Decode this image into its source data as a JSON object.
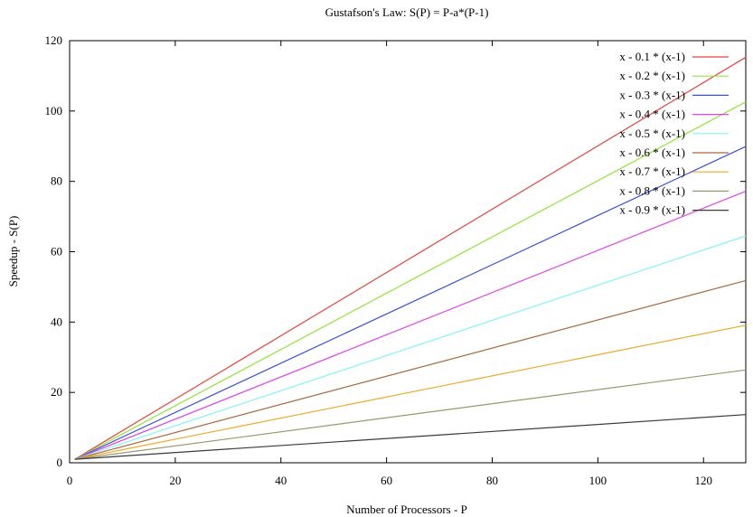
{
  "chart_data": {
    "type": "line",
    "title": "Gustafson's Law: S(P) = P-a*(P-1)",
    "xlabel": "Number of Processors - P",
    "ylabel": "Speedup - S(P)",
    "xlim": [
      0,
      128
    ],
    "ylim": [
      0,
      120
    ],
    "xticks": [
      "0",
      "20",
      "40",
      "60",
      "80",
      "100",
      "120"
    ],
    "yticks": [
      "0",
      "20",
      "40",
      "60",
      "80",
      "100",
      "120"
    ],
    "x": [
      1,
      128
    ],
    "grid": false,
    "legend_position": "top-right",
    "series": [
      {
        "name": "x - 0.1 * (x-1)",
        "color": "#e8423a",
        "a": 0.1,
        "values": [
          1,
          115.3
        ]
      },
      {
        "name": "x - 0.2 * (x-1)",
        "color": "#8ee63a",
        "a": 0.2,
        "values": [
          1,
          102.6
        ]
      },
      {
        "name": "x - 0.3 * (x-1)",
        "color": "#3a52d6",
        "a": 0.3,
        "values": [
          1,
          89.9
        ]
      },
      {
        "name": "x - 0.4 * (x-1)",
        "color": "#e044e6",
        "a": 0.4,
        "values": [
          1,
          77.2
        ]
      },
      {
        "name": "x - 0.5 * (x-1)",
        "color": "#86f2f2",
        "a": 0.5,
        "values": [
          1,
          64.5
        ]
      },
      {
        "name": "x - 0.6 * (x-1)",
        "color": "#a8673f",
        "a": 0.6,
        "values": [
          1,
          51.8
        ]
      },
      {
        "name": "x - 0.7 * (x-1)",
        "color": "#f0a828",
        "a": 0.7,
        "values": [
          1,
          39.1
        ]
      },
      {
        "name": "x - 0.8 * (x-1)",
        "color": "#949a6a",
        "a": 0.8,
        "values": [
          1,
          26.4
        ]
      },
      {
        "name": "x - 0.9 * (x-1)",
        "color": "#3a3a3a",
        "a": 0.9,
        "values": [
          1,
          13.7
        ]
      }
    ]
  }
}
